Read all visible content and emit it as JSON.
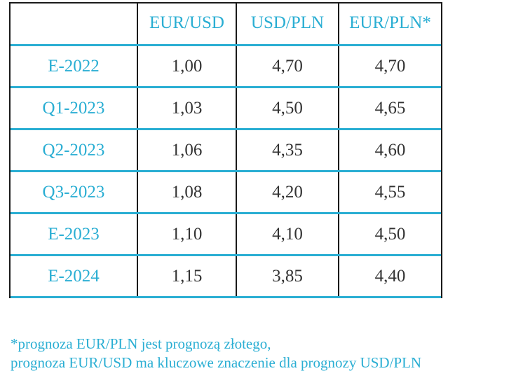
{
  "table": {
    "headers": [
      "",
      "EUR/USD",
      "USD/PLN",
      "EUR/PLN*"
    ],
    "rows": [
      {
        "label": "E-2022",
        "eur_usd": "1,00",
        "usd_pln": "4,70",
        "eur_pln": "4,70"
      },
      {
        "label": "Q1-2023",
        "eur_usd": "1,03",
        "usd_pln": "4,50",
        "eur_pln": "4,65"
      },
      {
        "label": "Q2-2023",
        "eur_usd": "1,06",
        "usd_pln": "4,35",
        "eur_pln": "4,60"
      },
      {
        "label": "Q3-2023",
        "eur_usd": "1,08",
        "usd_pln": "4,20",
        "eur_pln": "4,55"
      },
      {
        "label": "E-2023",
        "eur_usd": "1,10",
        "usd_pln": "4,10",
        "eur_pln": "4,50"
      },
      {
        "label": "E-2024",
        "eur_usd": "1,15",
        "usd_pln": "3,85",
        "eur_pln": "4,40"
      }
    ]
  },
  "footnote": {
    "line1": "*prognoza EUR/PLN jest prognozą złotego,",
    "line2": "prognoza EUR/USD ma kluczowe znaczenie dla prognozy USD/PLN"
  },
  "colors": {
    "accent": "#2aaed3",
    "text": "#333333",
    "border": "#1a1a1a"
  }
}
